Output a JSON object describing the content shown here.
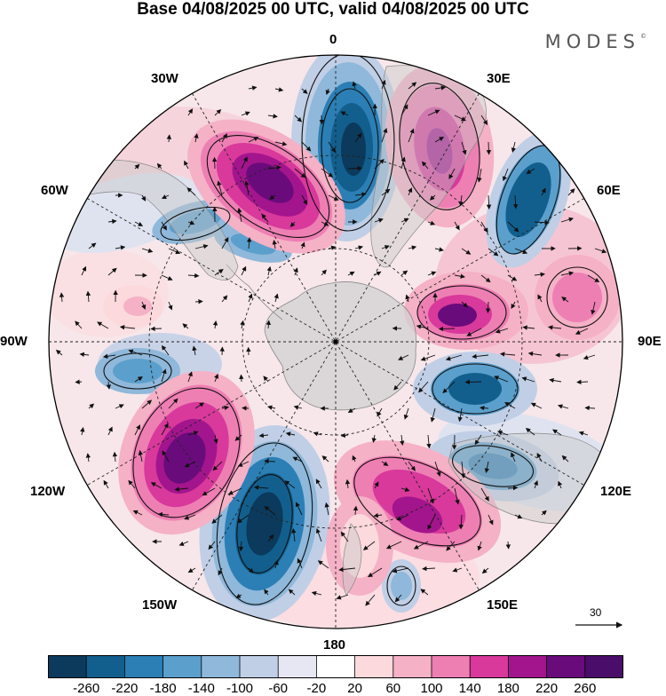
{
  "title": "Base 04/08/2025 00 UTC, valid 04/08/2025 00 UTC",
  "brand": "MODES",
  "brand_mark": "©",
  "longitude_labels": {
    "top": "0",
    "top_right": "30E",
    "upper_right": "60E",
    "right": "90E",
    "lower_right": "120E",
    "bottom_right": "150E",
    "bottom": "180",
    "bottom_left": "150W",
    "lower_left": "120W",
    "left": "90W",
    "upper_left": "60W",
    "top_left": "30W"
  },
  "colorbar": {
    "ticks": [
      "-260",
      "-220",
      "-180",
      "-140",
      "-100",
      "-60",
      "-20",
      "20",
      "60",
      "100",
      "140",
      "180",
      "220",
      "260"
    ],
    "colors": [
      "#0b3a5c",
      "#125f8e",
      "#2b7fb5",
      "#5b9fcc",
      "#8fb8da",
      "#c0cfe6",
      "#e6e7f3",
      "#ffffff",
      "#fbd9dc",
      "#f5b1c6",
      "#ee7fb3",
      "#d8399b",
      "#a3158d",
      "#6a0b7c",
      "#4b0d6a"
    ]
  },
  "vector_reference": {
    "value": "30"
  },
  "map_colors": {
    "land": "#d2d2d2",
    "ocean": "#ffffff",
    "grid": "#222222"
  }
}
